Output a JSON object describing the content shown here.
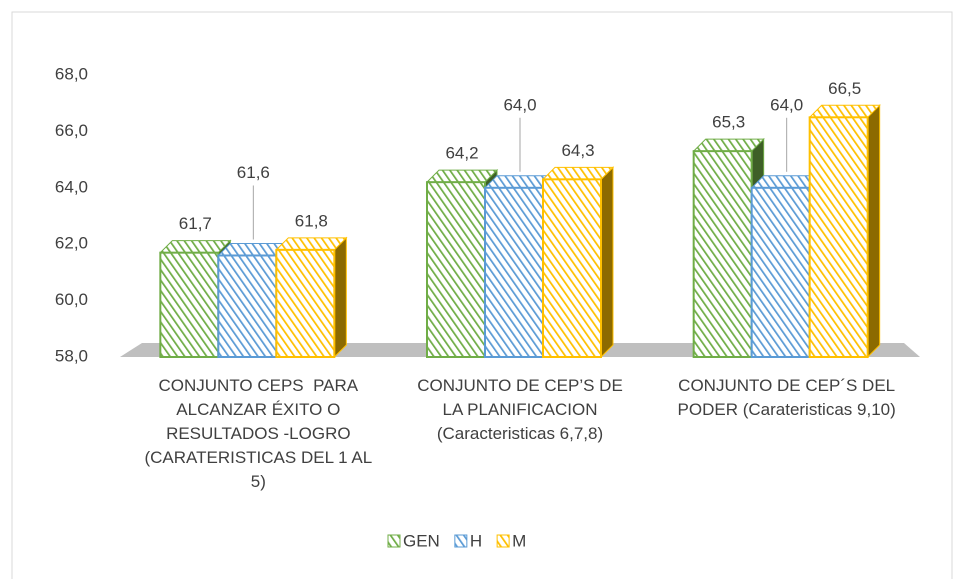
{
  "chart_data": {
    "type": "bar3d",
    "categories": [
      "CONJUNTO CEPS  PARA ALCANZAR ÉXITO O RESULTADOS -LOGRO (CARATERISTICAS DEL 1 AL 5)",
      "CONJUNTO DE CEP’S DE LA PLANIFICACION (Caracteristicas 6,7,8)",
      "CONJUNTO DE CEP´S DEL PODER (Carateristicas 9,10)"
    ],
    "series": [
      {
        "name": "GEN",
        "color": "#70ad47",
        "values": [
          61.7,
          64.2,
          65.3
        ],
        "value_labels": [
          "61,7",
          "64,2",
          "65,3"
        ]
      },
      {
        "name": "H",
        "color": "#5b9bd5",
        "values": [
          61.6,
          64.0,
          64.0
        ],
        "value_labels": [
          "61,6",
          "64,0",
          "64,0"
        ]
      },
      {
        "name": "M",
        "color": "#ffc000",
        "values": [
          61.8,
          64.3,
          66.5
        ],
        "value_labels": [
          "61,8",
          "64,3",
          "66,5"
        ]
      }
    ],
    "ylim": [
      58,
      68
    ],
    "yticks": [
      {
        "value": 58,
        "label": "58,0"
      },
      {
        "value": 60,
        "label": "60,0"
      },
      {
        "value": 62,
        "label": "62,0"
      },
      {
        "value": 64,
        "label": "64,0"
      },
      {
        "value": 66,
        "label": "66,0"
      },
      {
        "value": 68,
        "label": "68,0"
      }
    ],
    "legend": "bottom"
  }
}
